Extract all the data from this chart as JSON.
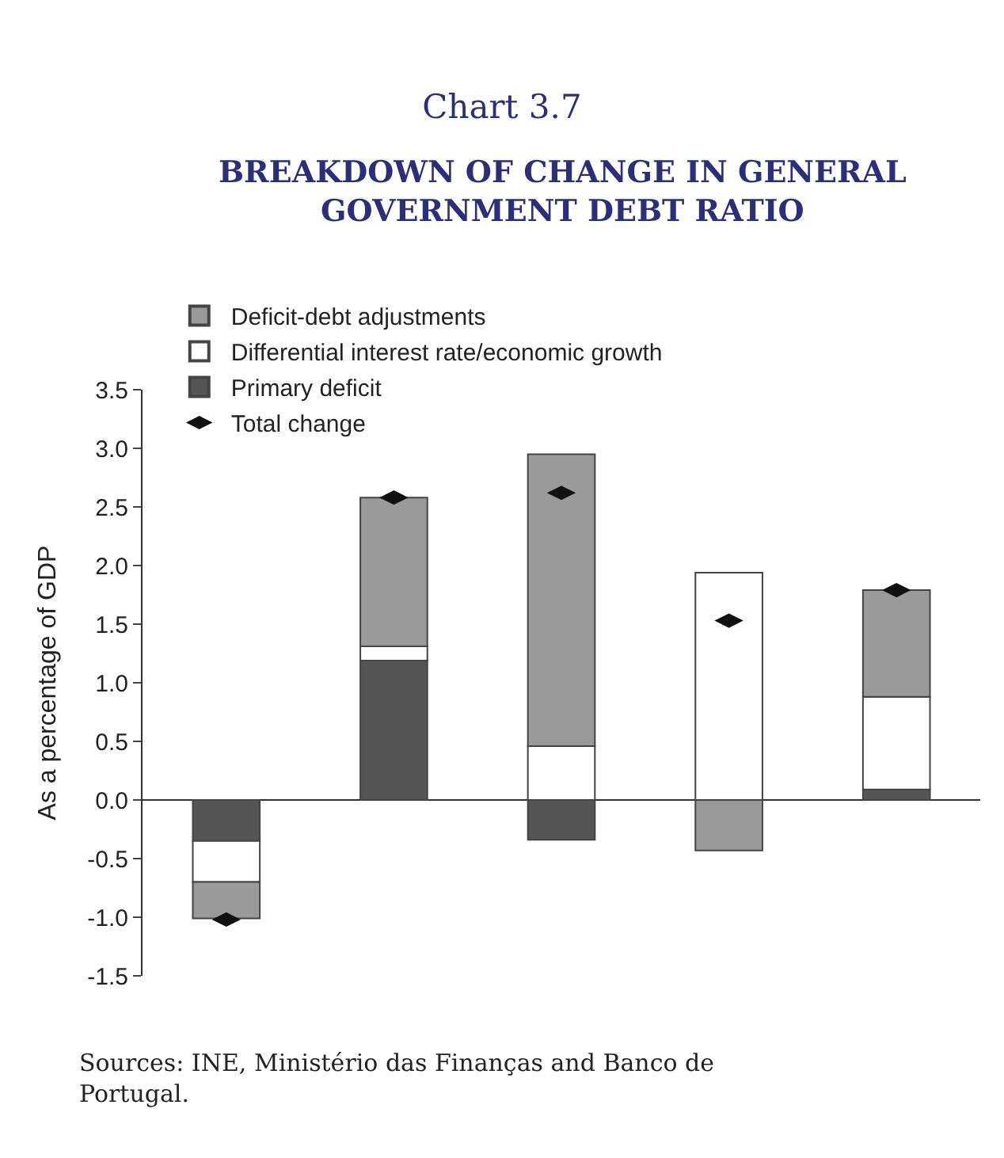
{
  "chart_data": {
    "type": "bar",
    "stacked": true,
    "title": "Chart 3.7",
    "subtitle": "BREAKDOWN OF CHANGE IN GENERAL GOVERNMENT DEBT RATIO",
    "ylabel": "As a percentage of GDP",
    "categories": [
      null,
      null,
      null,
      null,
      null
    ],
    "series": [
      {
        "name": "Primary deficit",
        "color": "#555555",
        "values": [
          -0.35,
          1.19,
          -0.34,
          null,
          0.09
        ]
      },
      {
        "name": "Differential interest rate/economic growth",
        "color": "#ffffff",
        "values": [
          -0.35,
          0.12,
          0.46,
          1.94,
          0.79
        ]
      },
      {
        "name": "Deficit-debt adjustments",
        "color": "#9a9a9a",
        "values": [
          -0.31,
          1.27,
          2.49,
          -0.43,
          0.91
        ]
      },
      {
        "name": "Total change",
        "type": "scatter",
        "color": "#111111",
        "values": [
          -1.02,
          2.58,
          2.62,
          1.53,
          1.79
        ]
      }
    ],
    "ylim": [
      -1.5,
      3.5
    ],
    "yticks": [
      -1.5,
      {
        "value": -1,
        "label": "-1.0"
      },
      -0.5,
      {
        "value": 0,
        "label": "0.0"
      },
      0.5,
      {
        "value": 1,
        "label": "1.0"
      },
      1.5,
      {
        "value": 2,
        "label": "2.0"
      },
      2.5,
      {
        "value": 3,
        "label": "3.0"
      },
      3.5
    ],
    "legend": "top left",
    "annotations": [
      "Sources: INE, Ministério das Finanças and Banco de Portugal."
    ]
  }
}
